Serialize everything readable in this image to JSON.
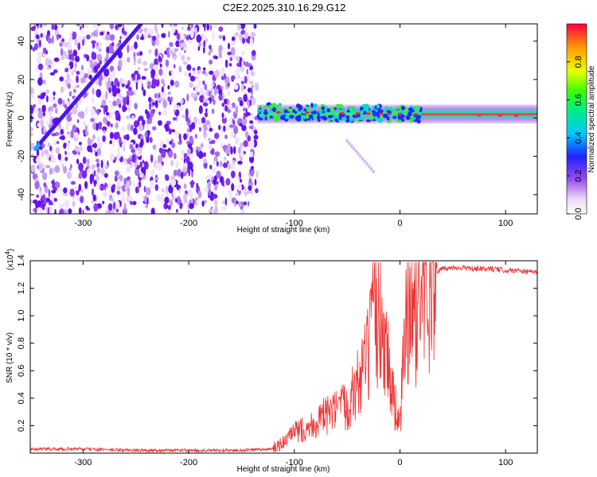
{
  "title": "C2E2.2025.310.16.29.G12",
  "chart_data": [
    {
      "type": "heatmap",
      "xlabel": "Height of straight line (km)",
      "ylabel": "Frequency (Hz)",
      "xlim": [
        -350,
        130
      ],
      "ylim": [
        -50,
        49
      ],
      "xticks": [
        -300,
        -200,
        -100,
        0,
        100
      ],
      "xtick_labels": [
        "-300",
        "-200",
        "-100",
        "0",
        "100"
      ],
      "yticks": [
        -40,
        -20,
        0,
        20,
        40
      ],
      "ytick_labels": [
        "-40",
        "-20",
        "0",
        "20",
        "40"
      ],
      "colorbar": {
        "label": "Normalized spectral amplitude",
        "range": [
          0,
          1
        ],
        "ticks": [
          0,
          0.2,
          0.4,
          0.6,
          0.8
        ],
        "tick_labels": [
          "0.0",
          "0.2",
          "0.4",
          "0.6",
          "0.8"
        ]
      },
      "features": [
        {
          "name": "diagonal-trace",
          "x": [
            -345,
            -245
          ],
          "freq": [
            -16,
            49
          ]
        },
        {
          "name": "carrier-band",
          "x": [
            -135,
            130
          ],
          "freq": [
            3,
            1
          ],
          "amplitude": 1.0
        },
        {
          "name": "side-streak",
          "x": [
            -50,
            -25
          ],
          "freq": [
            -12,
            -28
          ]
        }
      ]
    },
    {
      "type": "line",
      "xlabel": "Height of straight line (km)",
      "ylabel": "SNR (10 * v/v)",
      "multiplier": "(x10",
      "exponent": "4",
      "xlim": [
        -350,
        130
      ],
      "ylim": [
        0,
        1.4
      ],
      "xticks": [
        -300,
        -200,
        -100,
        0,
        100
      ],
      "xtick_labels": [
        "-300",
        "-200",
        "-100",
        "0",
        "100"
      ],
      "yticks": [
        0.2,
        0.4,
        0.6,
        0.8,
        1.0,
        1.2,
        1.4
      ],
      "ytick_labels": [
        "0.2",
        "0.4",
        "0.6",
        "0.8",
        "1.0",
        "1.2",
        "1.4"
      ],
      "series": [
        {
          "name": "SNR",
          "color": "#ee3333",
          "x": [
            -350,
            -300,
            -250,
            -200,
            -150,
            -120,
            -110,
            -100,
            -90,
            -80,
            -70,
            -60,
            -50,
            -40,
            -30,
            -25,
            -20,
            -15,
            -10,
            -5,
            0,
            5,
            10,
            15,
            20,
            25,
            30,
            35,
            40,
            50,
            60,
            70,
            80,
            90,
            100,
            110,
            120,
            130
          ],
          "y": [
            0.03,
            0.03,
            0.02,
            0.02,
            0.02,
            0.03,
            0.08,
            0.15,
            0.18,
            0.22,
            0.27,
            0.3,
            0.35,
            0.5,
            0.7,
            0.95,
            1.0,
            0.9,
            0.6,
            0.35,
            0.2,
            0.9,
            1.0,
            1.05,
            1.15,
            1.22,
            1.28,
            1.32,
            1.34,
            1.35,
            1.35,
            1.34,
            1.34,
            1.34,
            1.33,
            1.33,
            1.32,
            1.32
          ]
        }
      ]
    }
  ],
  "colors": {
    "line": "#ee3333",
    "heat_low": "#ede0f6",
    "heat_mid": "#7a24ee",
    "heat_high": "#ff1030"
  }
}
